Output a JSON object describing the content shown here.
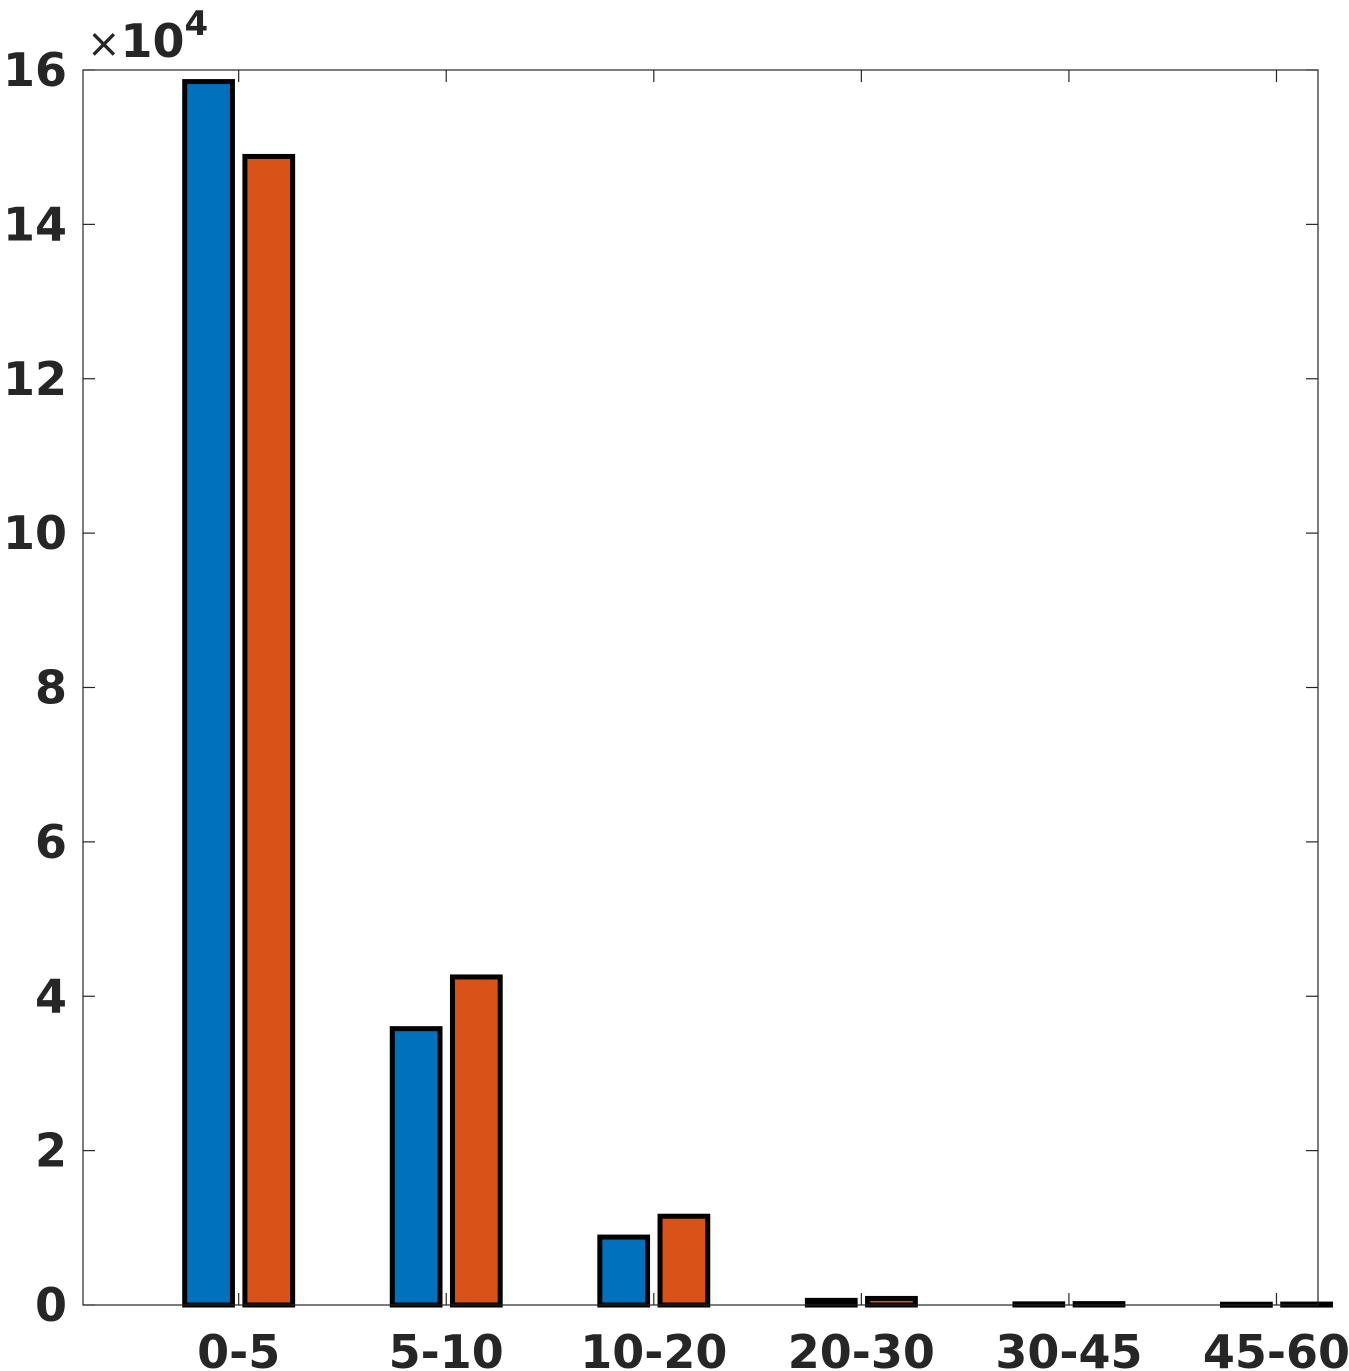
{
  "chart_data": {
    "type": "bar",
    "title": "",
    "xlabel": "",
    "ylabel": "",
    "categories": [
      "0-5",
      "5-10",
      "10-20",
      "20-30",
      "30-45",
      "45-60"
    ],
    "series": [
      {
        "color": "#0072BD",
        "values": [
          158500,
          35800,
          8800,
          600,
          150,
          100
        ]
      },
      {
        "color": "#D95319",
        "values": [
          148800,
          42500,
          11500,
          850,
          180,
          120
        ]
      }
    ],
    "ylim": [
      0,
      160000
    ],
    "yticks": [
      0,
      20000,
      40000,
      60000,
      80000,
      100000,
      120000,
      140000,
      160000
    ],
    "ytick_labels": [
      "0",
      "2",
      "4",
      "6",
      "8",
      "10",
      "12",
      "14",
      "16"
    ],
    "y_multiplier": {
      "symbol": "×",
      "base": "10",
      "exponent": "4"
    },
    "grid": false,
    "bar_edge_color": "#000000"
  }
}
